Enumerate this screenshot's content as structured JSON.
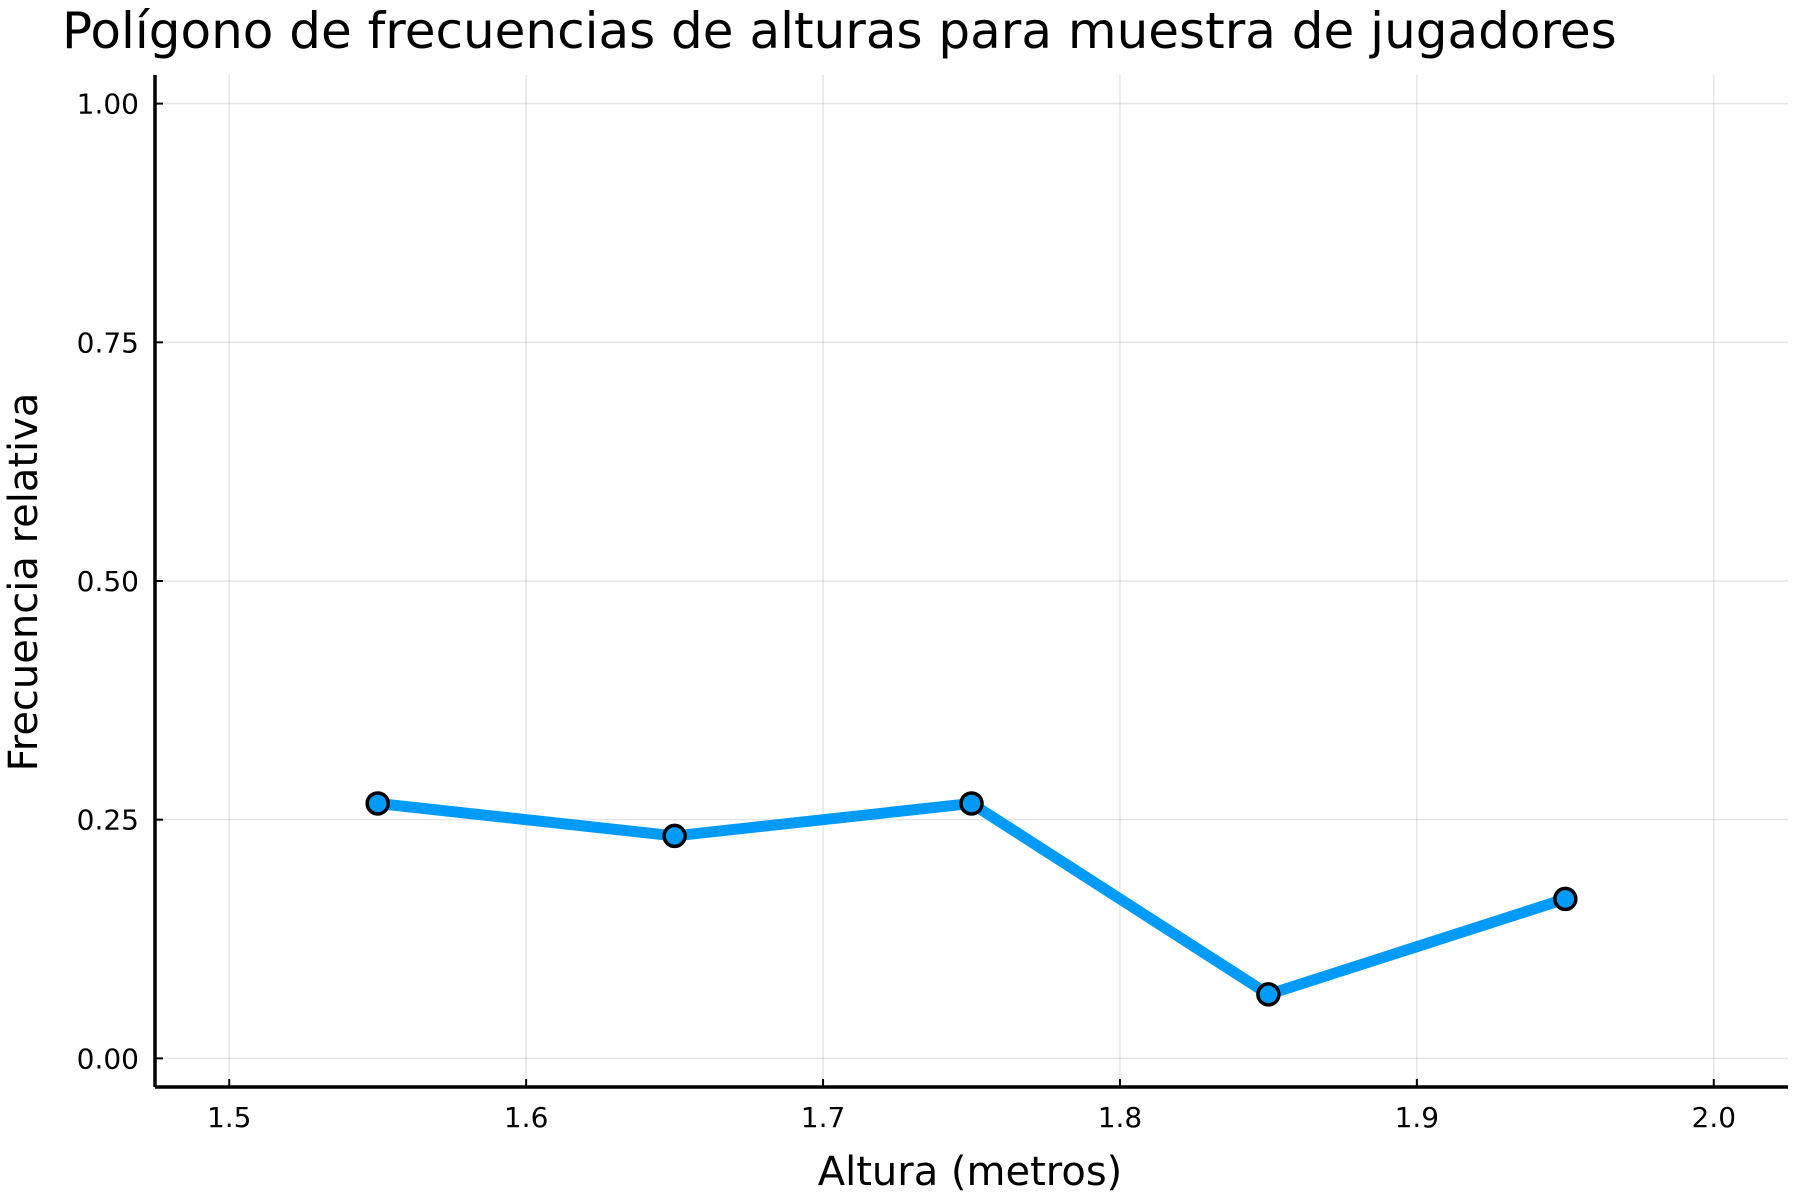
{
  "chart_data": {
    "type": "line",
    "title": "Polígono de frecuencias de alturas para muestra de jugadores",
    "xlabel": "Altura (metros)",
    "ylabel": "Frecuencia relativa",
    "xlim": [
      1.475,
      2.025
    ],
    "ylim": [
      -0.03,
      1.03
    ],
    "xticks": [
      1.5,
      1.6,
      1.7,
      1.8,
      1.9,
      2.0
    ],
    "xtick_labels": [
      "1.5",
      "1.6",
      "1.7",
      "1.8",
      "1.9",
      "2.0"
    ],
    "yticks": [
      0.0,
      0.25,
      0.5,
      0.75,
      1.0
    ],
    "ytick_labels": [
      "0.00",
      "0.25",
      "0.50",
      "0.75",
      "1.00"
    ],
    "grid": true,
    "series": [
      {
        "x": [
          1.55,
          1.65,
          1.75,
          1.85,
          1.95
        ],
        "y": [
          0.267,
          0.233,
          0.267,
          0.067,
          0.167
        ],
        "color": "#009af9",
        "marker": "circle",
        "marker_edge_color": "#000000"
      }
    ]
  }
}
